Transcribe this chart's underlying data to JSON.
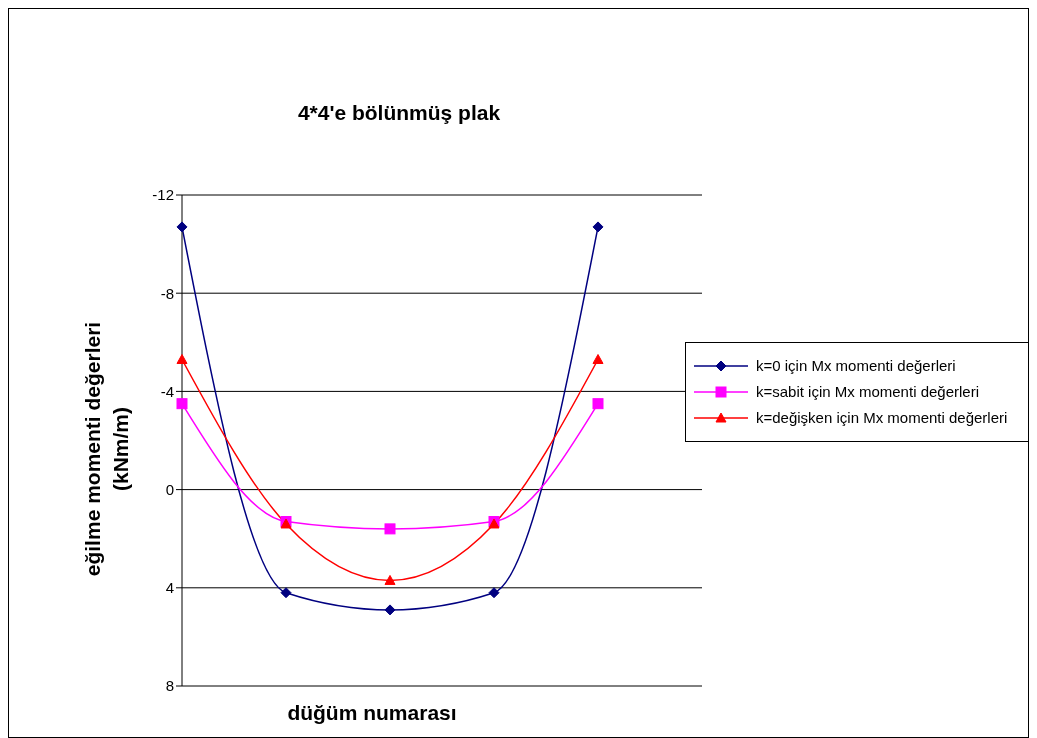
{
  "chart_data": {
    "type": "line",
    "title": "4*4'e bölünmüş plak",
    "xlabel": "düğüm numarası",
    "ylabel": "eğilme momenti değerleri (kNm/m)",
    "categories": [
      null,
      null,
      null,
      null,
      null,
      null
    ],
    "series": [
      {
        "name": "k=0 için Mx momenti değerleri",
        "color": "#000080",
        "marker": "diamond",
        "values": [
          -10.7,
          4.2,
          4.9,
          4.2,
          -10.7,
          null
        ]
      },
      {
        "name": "k=sabit için Mx momenti değerleri",
        "color": "#ff00ff",
        "marker": "square",
        "values": [
          -3.5,
          1.3,
          1.6,
          1.3,
          -3.5,
          null
        ]
      },
      {
        "name": "k=değişken için Mx momenti değerleri",
        "color": "#ff0000",
        "marker": "triangle",
        "values": [
          -5.3,
          1.4,
          3.7,
          1.4,
          -5.3,
          null
        ]
      }
    ],
    "ylim": [
      8,
      -12
    ],
    "yticks": [
      -12,
      -8,
      -4,
      0,
      4,
      8
    ],
    "grid": "y",
    "legend": "right"
  }
}
